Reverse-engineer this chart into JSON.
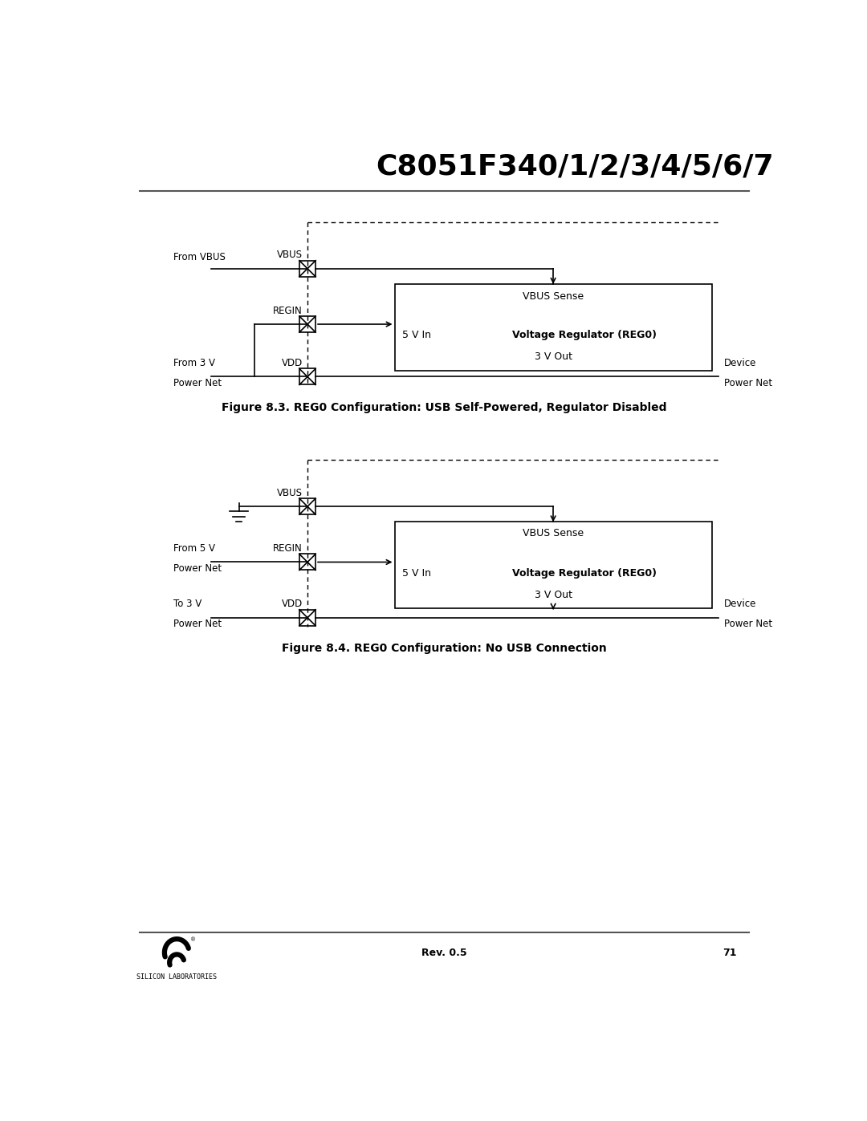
{
  "title": "C8051F340/1/2/3/4/5/6/7",
  "fig1_caption": "Figure 8.3. REG0 Configuration: USB Self-Powered, Regulator Disabled",
  "fig2_caption": "Figure 8.4. REG0 Configuration: No USB Connection",
  "footer_rev": "Rev. 0.5",
  "footer_page": "71",
  "bg_color": "#ffffff",
  "line_color": "#000000"
}
